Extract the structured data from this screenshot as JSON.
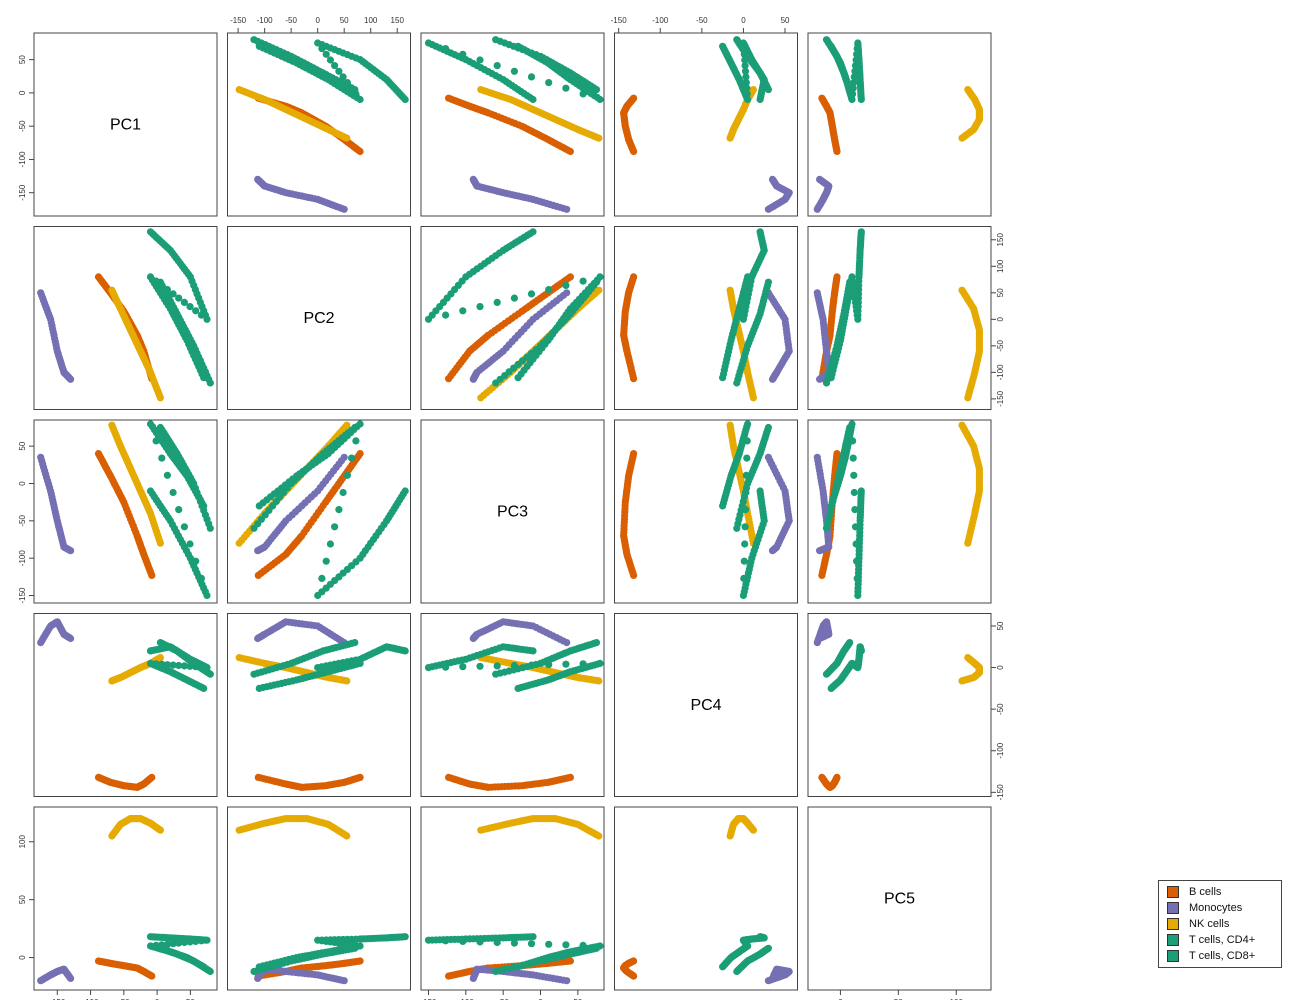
{
  "chart_data": {
    "type": "scatter",
    "variables": [
      "PC1",
      "PC2",
      "PC3",
      "PC4",
      "PC5"
    ],
    "axis_ranges": {
      "PC1": [
        -185,
        90
      ],
      "PC2": [
        -170,
        175
      ],
      "PC3": [
        -160,
        85
      ],
      "PC4": [
        -155,
        65
      ],
      "PC5": [
        -28,
        130
      ]
    },
    "ticks": {
      "PC1": [
        "-150",
        "-100",
        "-50",
        "0",
        "50"
      ],
      "PC2": [
        "-150",
        "-100",
        "-50",
        "0",
        "50",
        "100",
        "150"
      ],
      "PC3": [
        "-150",
        "-100",
        "-50",
        "0",
        "50"
      ],
      "PC4": [
        "-150",
        "-100",
        "-50",
        "0",
        "50"
      ],
      "PC5": [
        "0",
        "50",
        "100"
      ]
    },
    "legend": {
      "placement": "bottom-right"
    },
    "series": [
      {
        "name": "B cells",
        "color": "#d95f02",
        "points": [
          {
            "PC1": -88,
            "PC2": 80,
            "PC3": 40,
            "PC4": -132,
            "PC5": -3
          },
          {
            "PC1": -70,
            "PC2": 50,
            "PC3": 10,
            "PC4": -138,
            "PC5": -5
          },
          {
            "PC1": -50,
            "PC2": 15,
            "PC3": -25,
            "PC4": -142,
            "PC5": -7
          },
          {
            "PC1": -30,
            "PC2": -30,
            "PC3": -70,
            "PC4": -144,
            "PC5": -9
          },
          {
            "PC1": -20,
            "PC2": -60,
            "PC3": -95,
            "PC4": -140,
            "PC5": -12
          },
          {
            "PC1": -8,
            "PC2": -112,
            "PC3": -123,
            "PC4": -132,
            "PC5": -16
          }
        ]
      },
      {
        "name": "Monocytes",
        "color": "#7570b3",
        "points": [
          {
            "PC1": -175,
            "PC2": 50,
            "PC3": 35,
            "PC4": 30,
            "PC5": -20
          },
          {
            "PC1": -160,
            "PC2": 0,
            "PC3": -10,
            "PC4": 50,
            "PC5": -15
          },
          {
            "PC1": -150,
            "PC2": -60,
            "PC3": -50,
            "PC4": 55,
            "PC5": -12
          },
          {
            "PC1": -140,
            "PC2": -100,
            "PC3": -85,
            "PC4": 40,
            "PC5": -10
          },
          {
            "PC1": -130,
            "PC2": -113,
            "PC3": -90,
            "PC4": 35,
            "PC5": -18
          }
        ]
      },
      {
        "name": "NK cells",
        "color": "#e6ab02",
        "points": [
          {
            "PC1": -68,
            "PC2": 55,
            "PC3": 78,
            "PC4": -16,
            "PC5": 105
          },
          {
            "PC1": -55,
            "PC2": 20,
            "PC3": 50,
            "PC4": -12,
            "PC5": 115
          },
          {
            "PC1": -40,
            "PC2": -20,
            "PC3": 20,
            "PC4": -6,
            "PC5": 120
          },
          {
            "PC1": -25,
            "PC2": -60,
            "PC3": -10,
            "PC4": 0,
            "PC5": 120
          },
          {
            "PC1": -10,
            "PC2": -100,
            "PC3": -40,
            "PC4": 5,
            "PC5": 116
          },
          {
            "PC1": 5,
            "PC2": -148,
            "PC3": -80,
            "PC4": 12,
            "PC5": 110
          }
        ]
      },
      {
        "name": "T cells, CD4+",
        "color": "#1b9e77",
        "points": [
          {
            "PC1": -10,
            "PC2": 165,
            "PC3": -10,
            "PC4": 20,
            "PC5": 18
          },
          {
            "PC1": 20,
            "PC2": 130,
            "PC3": -50,
            "PC4": 25,
            "PC5": 17
          },
          {
            "PC1": 50,
            "PC2": 80,
            "PC3": -100,
            "PC4": 10,
            "PC5": 16
          },
          {
            "PC1": 75,
            "PC2": 0,
            "PC3": -150,
            "PC4": 0,
            "PC5": 15
          },
          {
            "PC1": -10,
            "PC2": 80,
            "PC3": 80,
            "PC4": 5,
            "PC5": 10
          },
          {
            "PC1": 20,
            "PC2": 20,
            "PC3": 40,
            "PC4": -5,
            "PC5": 5
          },
          {
            "PC1": 45,
            "PC2": -40,
            "PC3": 10,
            "PC4": -15,
            "PC5": 0
          },
          {
            "PC1": 70,
            "PC2": -110,
            "PC3": -30,
            "PC4": -25,
            "PC5": -8
          }
        ]
      },
      {
        "name": "T cells, CD8+",
        "color": "#1b9e77",
        "points": [
          {
            "PC1": 5,
            "PC2": 70,
            "PC3": 75,
            "PC4": 30,
            "PC5": 8
          },
          {
            "PC1": 30,
            "PC2": 10,
            "PC3": 40,
            "PC4": 20,
            "PC5": 3
          },
          {
            "PC1": 55,
            "PC2": -50,
            "PC3": 0,
            "PC4": 5,
            "PC5": -3
          },
          {
            "PC1": 80,
            "PC2": -120,
            "PC3": -60,
            "PC4": -8,
            "PC5": -12
          }
        ]
      }
    ]
  }
}
